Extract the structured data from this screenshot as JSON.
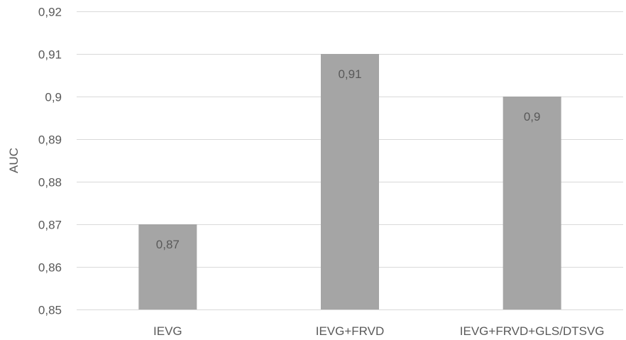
{
  "chart_data": {
    "type": "bar",
    "categories": [
      "IEVG",
      "IEVG+FRVD",
      "IEVG+FRVD+GLS/DTSVG"
    ],
    "values": [
      0.87,
      0.91,
      0.9
    ],
    "data_labels": [
      "0,87",
      "0,91",
      "0,9"
    ],
    "ylabel": "AUC",
    "xlabel": "",
    "ylim": [
      0.85,
      0.92
    ],
    "y_ticks": [
      "0,85",
      "0,86",
      "0,87",
      "0,88",
      "0,89",
      "0,9",
      "0,91",
      "0,92"
    ],
    "grid": true,
    "legend": "none",
    "bar_color": "#a5a5a5",
    "grid_color": "#d9d9d9",
    "text_color": "#595959"
  }
}
